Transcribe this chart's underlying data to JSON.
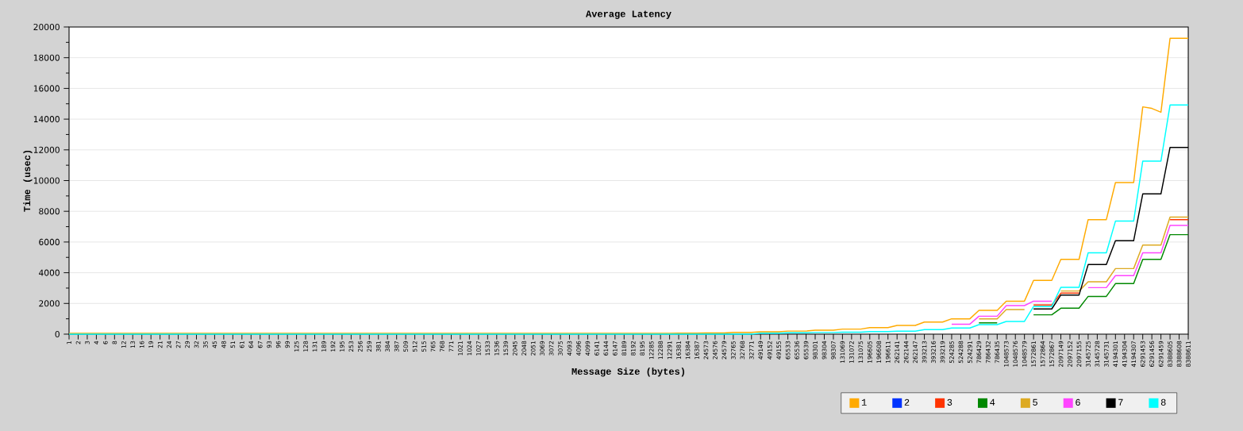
{
  "chart_data": {
    "type": "line",
    "title": "Average Latency",
    "xlabel": "Message Size (bytes)",
    "ylabel": "Time (usec)",
    "categories": [
      "1",
      "2",
      "3",
      "4",
      "6",
      "8",
      "12",
      "13",
      "16",
      "19",
      "21",
      "24",
      "27",
      "29",
      "32",
      "35",
      "45",
      "48",
      "51",
      "61",
      "64",
      "67",
      "93",
      "96",
      "99",
      "125",
      "128",
      "131",
      "189",
      "192",
      "195",
      "253",
      "256",
      "259",
      "381",
      "384",
      "387",
      "509",
      "512",
      "515",
      "765",
      "768",
      "771",
      "1021",
      "1024",
      "1027",
      "1533",
      "1536",
      "1539",
      "2045",
      "2048",
      "2051",
      "3069",
      "3072",
      "3075",
      "4093",
      "4096",
      "4099",
      "6141",
      "6144",
      "6147",
      "8189",
      "8192",
      "8195",
      "12285",
      "12288",
      "12291",
      "16381",
      "16384",
      "16387",
      "24573",
      "24576",
      "24579",
      "32765",
      "32768",
      "32771",
      "49149",
      "49152",
      "49155",
      "65533",
      "65536",
      "65539",
      "98301",
      "98304",
      "98307",
      "131069",
      "131072",
      "131075",
      "196605",
      "196608",
      "196611",
      "262141",
      "262144",
      "262147",
      "393213",
      "393216",
      "393219",
      "524285",
      "524288",
      "524291",
      "786429",
      "786432",
      "786435",
      "1048573",
      "1048576",
      "1048579",
      "1572861",
      "1572864",
      "1572867",
      "2097149",
      "2097152",
      "2097155",
      "3145725",
      "3145728",
      "3145731",
      "4194301",
      "4194304",
      "4194307",
      "6291453",
      "6291456",
      "6291459",
      "8388605",
      "8388608",
      "8388611"
    ],
    "series": [
      {
        "name": "1",
        "color": "#ffaa00",
        "values": [
          50,
          50,
          50,
          50,
          50,
          50,
          50,
          50,
          50,
          50,
          50,
          50,
          50,
          50,
          50,
          50,
          50,
          50,
          50,
          50,
          50,
          50,
          50,
          50,
          50,
          50,
          50,
          50,
          50,
          50,
          50,
          50,
          50,
          50,
          50,
          50,
          50,
          50,
          50,
          50,
          50,
          50,
          50,
          50,
          50,
          50,
          50,
          50,
          50,
          50,
          50,
          50,
          50,
          50,
          50,
          50,
          50,
          50,
          50,
          50,
          50,
          50,
          50,
          50,
          50,
          50,
          50,
          60,
          60,
          60,
          80,
          80,
          80,
          120,
          120,
          120,
          160,
          160,
          160,
          200,
          200,
          200,
          260,
          260,
          260,
          330,
          330,
          330,
          430,
          430,
          430,
          570,
          570,
          570,
          790,
          790,
          790,
          1000,
          1000,
          1000,
          1550,
          1550,
          1550,
          2150,
          2150,
          2150,
          3500,
          3500,
          3500,
          4870,
          4870,
          4870,
          7460,
          7460,
          7460,
          9870,
          9870,
          9870,
          14800,
          14700,
          14450,
          19260,
          19260,
          19260
        ]
      },
      {
        "name": "2",
        "color": "#0033ff",
        "values": [
          null,
          null,
          null,
          null,
          null,
          null,
          null,
          null,
          null,
          null,
          null,
          null,
          null,
          null,
          null,
          null,
          null,
          null,
          null,
          null,
          null,
          null,
          null,
          null,
          null,
          null,
          null,
          null,
          null,
          null,
          null,
          null,
          null,
          null,
          null,
          null,
          null,
          null,
          null,
          null,
          null,
          null,
          null,
          null,
          null,
          null,
          null,
          null,
          null,
          null,
          null,
          null,
          null,
          null,
          null,
          null,
          null,
          null,
          null,
          null,
          null,
          null,
          null,
          null,
          null,
          null,
          null,
          null,
          null,
          null,
          null,
          null,
          null,
          null,
          null,
          null,
          null,
          null,
          null,
          null,
          null,
          null,
          null,
          null,
          null,
          null,
          null,
          null,
          null,
          null,
          null,
          null,
          null,
          null,
          null,
          null,
          null,
          null,
          null,
          null,
          null,
          null,
          null,
          null,
          null,
          null,
          null,
          null,
          null,
          null,
          null,
          null,
          null,
          null,
          null,
          null,
          null,
          null,
          null,
          null,
          null,
          null,
          null,
          null
        ]
      },
      {
        "name": "3",
        "color": "#ff3300",
        "values": [
          null,
          null,
          null,
          null,
          null,
          null,
          null,
          null,
          null,
          null,
          null,
          null,
          null,
          null,
          null,
          null,
          null,
          null,
          null,
          null,
          null,
          null,
          null,
          null,
          null,
          null,
          null,
          null,
          null,
          null,
          null,
          null,
          null,
          null,
          null,
          null,
          null,
          null,
          null,
          null,
          null,
          null,
          null,
          null,
          null,
          null,
          null,
          null,
          null,
          null,
          null,
          null,
          null,
          null,
          null,
          null,
          null,
          null,
          null,
          null,
          null,
          null,
          null,
          null,
          null,
          null,
          null,
          null,
          null,
          null,
          null,
          null,
          null,
          null,
          null,
          null,
          null,
          null,
          null,
          null,
          null,
          null,
          null,
          null,
          null,
          null,
          null,
          null,
          null,
          null,
          null,
          null,
          null,
          null,
          null,
          null,
          null,
          null,
          null,
          null,
          null,
          null,
          null,
          null,
          null,
          null,
          1900,
          1900,
          1900,
          2670,
          2670,
          2670,
          null,
          null,
          null,
          null,
          null,
          null,
          null,
          null,
          null,
          7460,
          7460,
          7460
        ]
      },
      {
        "name": "4",
        "color": "#008800",
        "values": [
          null,
          null,
          null,
          null,
          null,
          null,
          null,
          null,
          null,
          null,
          null,
          null,
          null,
          null,
          null,
          null,
          null,
          null,
          null,
          null,
          null,
          null,
          null,
          null,
          null,
          null,
          null,
          null,
          null,
          null,
          null,
          null,
          null,
          null,
          null,
          null,
          null,
          null,
          null,
          null,
          null,
          null,
          null,
          null,
          null,
          null,
          null,
          null,
          null,
          null,
          null,
          null,
          null,
          null,
          null,
          null,
          null,
          null,
          null,
          null,
          null,
          null,
          null,
          null,
          null,
          null,
          null,
          null,
          null,
          null,
          null,
          null,
          null,
          null,
          null,
          null,
          null,
          null,
          null,
          null,
          null,
          null,
          null,
          null,
          null,
          null,
          null,
          null,
          null,
          null,
          null,
          null,
          null,
          null,
          null,
          null,
          null,
          null,
          null,
          null,
          740,
          740,
          740,
          null,
          null,
          null,
          1260,
          1260,
          1260,
          1690,
          1690,
          1690,
          2460,
          2460,
          2460,
          3290,
          3290,
          3290,
          4870,
          4870,
          4870,
          6480,
          6480,
          6480
        ]
      },
      {
        "name": "5",
        "color": "#ddaa22",
        "values": [
          null,
          null,
          null,
          null,
          null,
          null,
          null,
          null,
          null,
          null,
          null,
          null,
          null,
          null,
          null,
          null,
          null,
          null,
          null,
          null,
          null,
          null,
          null,
          null,
          null,
          null,
          null,
          null,
          null,
          null,
          null,
          null,
          null,
          null,
          null,
          null,
          null,
          null,
          null,
          null,
          null,
          null,
          null,
          null,
          null,
          null,
          null,
          null,
          null,
          null,
          null,
          null,
          null,
          null,
          null,
          null,
          null,
          null,
          null,
          null,
          null,
          null,
          null,
          null,
          null,
          null,
          null,
          null,
          null,
          null,
          null,
          null,
          null,
          null,
          null,
          null,
          null,
          null,
          null,
          null,
          null,
          null,
          null,
          null,
          null,
          null,
          null,
          null,
          null,
          null,
          null,
          null,
          null,
          null,
          null,
          null,
          null,
          null,
          null,
          null,
          1000,
          1000,
          1000,
          1600,
          1600,
          1600,
          null,
          null,
          null,
          2810,
          2810,
          2810,
          3410,
          3410,
          3410,
          4270,
          4270,
          4270,
          5800,
          5800,
          5800,
          7620,
          7620,
          7620
        ]
      },
      {
        "name": "6",
        "color": "#ff44ff",
        "values": [
          null,
          null,
          null,
          null,
          null,
          null,
          null,
          null,
          null,
          null,
          null,
          null,
          null,
          null,
          null,
          null,
          null,
          null,
          null,
          null,
          null,
          null,
          null,
          null,
          null,
          null,
          null,
          null,
          null,
          null,
          null,
          null,
          null,
          null,
          null,
          null,
          null,
          null,
          null,
          null,
          null,
          null,
          null,
          null,
          null,
          null,
          null,
          null,
          null,
          null,
          null,
          null,
          null,
          null,
          null,
          null,
          null,
          null,
          null,
          null,
          null,
          null,
          null,
          null,
          null,
          null,
          null,
          null,
          null,
          null,
          null,
          null,
          null,
          null,
          null,
          null,
          null,
          null,
          null,
          null,
          null,
          null,
          null,
          null,
          null,
          null,
          null,
          null,
          null,
          null,
          null,
          null,
          null,
          null,
          null,
          null,
          null,
          650,
          650,
          650,
          1170,
          1170,
          1170,
          1860,
          1860,
          1860,
          2150,
          2150,
          2150,
          null,
          null,
          null,
          3030,
          3030,
          3030,
          3810,
          3810,
          3810,
          5300,
          5300,
          5300,
          7080,
          7080,
          7080
        ]
      },
      {
        "name": "7",
        "color": "#000000",
        "values": [
          null,
          null,
          null,
          null,
          null,
          null,
          null,
          null,
          null,
          null,
          null,
          null,
          null,
          null,
          null,
          null,
          null,
          null,
          null,
          null,
          null,
          null,
          null,
          null,
          null,
          null,
          null,
          null,
          null,
          null,
          null,
          null,
          null,
          null,
          null,
          null,
          null,
          null,
          null,
          null,
          null,
          null,
          null,
          null,
          null,
          null,
          null,
          null,
          null,
          null,
          null,
          null,
          null,
          null,
          null,
          null,
          null,
          null,
          null,
          null,
          null,
          null,
          null,
          null,
          null,
          null,
          null,
          null,
          null,
          null,
          null,
          null,
          null,
          null,
          null,
          null,
          null,
          null,
          null,
          null,
          null,
          null,
          null,
          null,
          null,
          null,
          null,
          null,
          null,
          null,
          null,
          null,
          null,
          null,
          null,
          null,
          null,
          null,
          null,
          null,
          null,
          null,
          null,
          null,
          null,
          null,
          1640,
          1640,
          1640,
          2550,
          2550,
          2550,
          4530,
          4530,
          4530,
          6080,
          6080,
          6080,
          9130,
          9130,
          9130,
          12160,
          12160,
          12160
        ]
      },
      {
        "name": "8",
        "color": "#00ffff",
        "values": [
          0,
          0,
          0,
          0,
          0,
          0,
          0,
          0,
          0,
          0,
          0,
          0,
          0,
          0,
          0,
          0,
          0,
          0,
          0,
          0,
          0,
          0,
          0,
          0,
          0,
          0,
          0,
          0,
          0,
          0,
          0,
          0,
          0,
          0,
          0,
          0,
          0,
          0,
          0,
          0,
          0,
          0,
          0,
          0,
          0,
          0,
          0,
          0,
          0,
          0,
          0,
          0,
          0,
          0,
          0,
          0,
          0,
          0,
          0,
          0,
          0,
          0,
          0,
          0,
          0,
          0,
          0,
          0,
          0,
          0,
          0,
          0,
          0,
          0,
          0,
          0,
          70,
          70,
          70,
          90,
          90,
          90,
          110,
          110,
          110,
          130,
          130,
          130,
          170,
          170,
          170,
          190,
          190,
          190,
          300,
          300,
          300,
          400,
          400,
          400,
          620,
          620,
          620,
          830,
          830,
          830,
          1800,
          1800,
          1800,
          3050,
          3050,
          3050,
          5300,
          5300,
          5300,
          7360,
          7360,
          7360,
          11270,
          11270,
          11270,
          14920,
          14920,
          14920
        ]
      }
    ],
    "ylim": [
      0,
      20000
    ],
    "yticks": [
      0,
      2000,
      4000,
      6000,
      8000,
      10000,
      12000,
      14000,
      16000,
      18000,
      20000
    ],
    "grid": "y",
    "legend": "bottom right"
  }
}
